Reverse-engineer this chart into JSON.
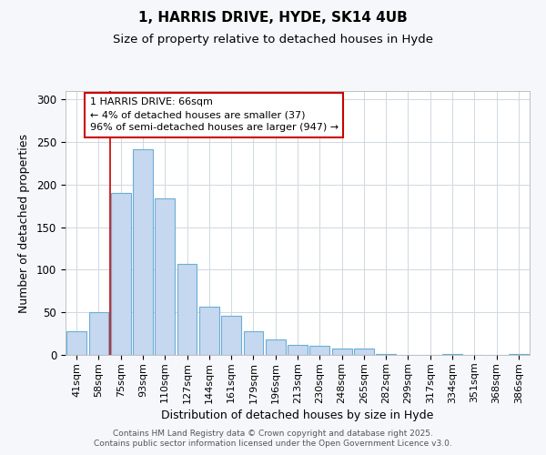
{
  "title1": "1, HARRIS DRIVE, HYDE, SK14 4UB",
  "title2": "Size of property relative to detached houses in Hyde",
  "xlabel": "Distribution of detached houses by size in Hyde",
  "ylabel": "Number of detached properties",
  "categories": [
    "41sqm",
    "58sqm",
    "75sqm",
    "93sqm",
    "110sqm",
    "127sqm",
    "144sqm",
    "161sqm",
    "179sqm",
    "196sqm",
    "213sqm",
    "230sqm",
    "248sqm",
    "265sqm",
    "282sqm",
    "299sqm",
    "317sqm",
    "334sqm",
    "351sqm",
    "368sqm",
    "386sqm"
  ],
  "values": [
    28,
    50,
    190,
    242,
    184,
    107,
    57,
    46,
    28,
    18,
    12,
    11,
    8,
    7,
    1,
    0,
    0,
    1,
    0,
    0,
    1
  ],
  "bar_color": "#c5d8f0",
  "bar_edge_color": "#6baed6",
  "red_line_index": 1.5,
  "annotation_text": "1 HARRIS DRIVE: 66sqm\n← 4% of detached houses are smaller (37)\n96% of semi-detached houses are larger (947) →",
  "annotation_box_facecolor": "#ffffff",
  "annotation_box_edgecolor": "#cc0000",
  "ylim": [
    0,
    310
  ],
  "yticks": [
    0,
    50,
    100,
    150,
    200,
    250,
    300
  ],
  "footer_line1": "Contains HM Land Registry data © Crown copyright and database right 2025.",
  "footer_line2": "Contains public sector information licensed under the Open Government Licence v3.0.",
  "background_color": "#f5f7fa",
  "plot_bg_color": "#ffffff",
  "grid_color": "#d0d8e0",
  "title1_fontsize": 11,
  "title2_fontsize": 9.5,
  "xlabel_fontsize": 9,
  "ylabel_fontsize": 9,
  "tick_fontsize": 8.5,
  "xtick_fontsize": 8,
  "annot_fontsize": 8,
  "footer_fontsize": 6.5
}
